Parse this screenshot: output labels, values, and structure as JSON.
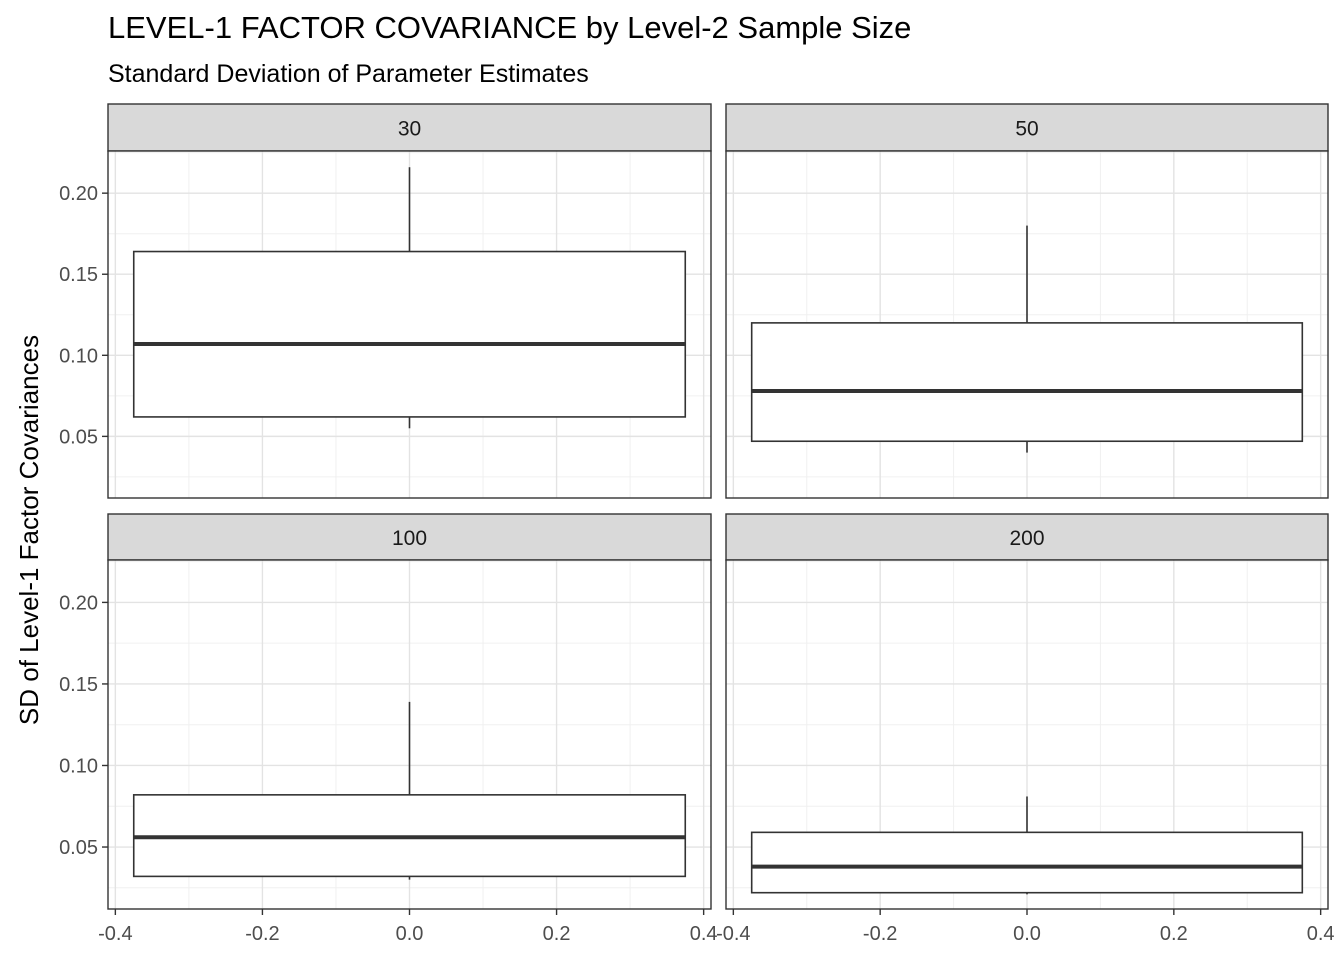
{
  "chart_data": {
    "type": "boxplot",
    "title": "LEVEL-1 FACTOR COVARIANCE by Level-2 Sample Size",
    "subtitle": "Standard Deviation of Parameter Estimates",
    "ylabel": "SD of Level-1 Factor Covariances",
    "xlabel": "",
    "xlim": [
      -0.41,
      0.41
    ],
    "ylim": [
      0.012,
      0.226
    ],
    "x_ticks": [
      -0.4,
      -0.2,
      0.0,
      0.2,
      0.4
    ],
    "x_tick_labels": [
      "-0.4",
      "-0.2",
      "0.0",
      "0.2",
      "0.4"
    ],
    "y_ticks": [
      0.05,
      0.1,
      0.15,
      0.2
    ],
    "y_tick_labels": [
      "0.05",
      "0.10",
      "0.15",
      "0.20"
    ],
    "grid": true,
    "box_x_range": [
      -0.375,
      0.375
    ],
    "panels": [
      {
        "label": "30",
        "min": 0.055,
        "q1": 0.062,
        "median": 0.107,
        "q3": 0.164,
        "max": 0.216
      },
      {
        "label": "50",
        "min": 0.04,
        "q1": 0.047,
        "median": 0.078,
        "q3": 0.12,
        "max": 0.18
      },
      {
        "label": "100",
        "min": 0.03,
        "q1": 0.032,
        "median": 0.056,
        "q3": 0.082,
        "max": 0.139
      },
      {
        "label": "200",
        "min": 0.021,
        "q1": 0.022,
        "median": 0.038,
        "q3": 0.059,
        "max": 0.081
      }
    ]
  }
}
